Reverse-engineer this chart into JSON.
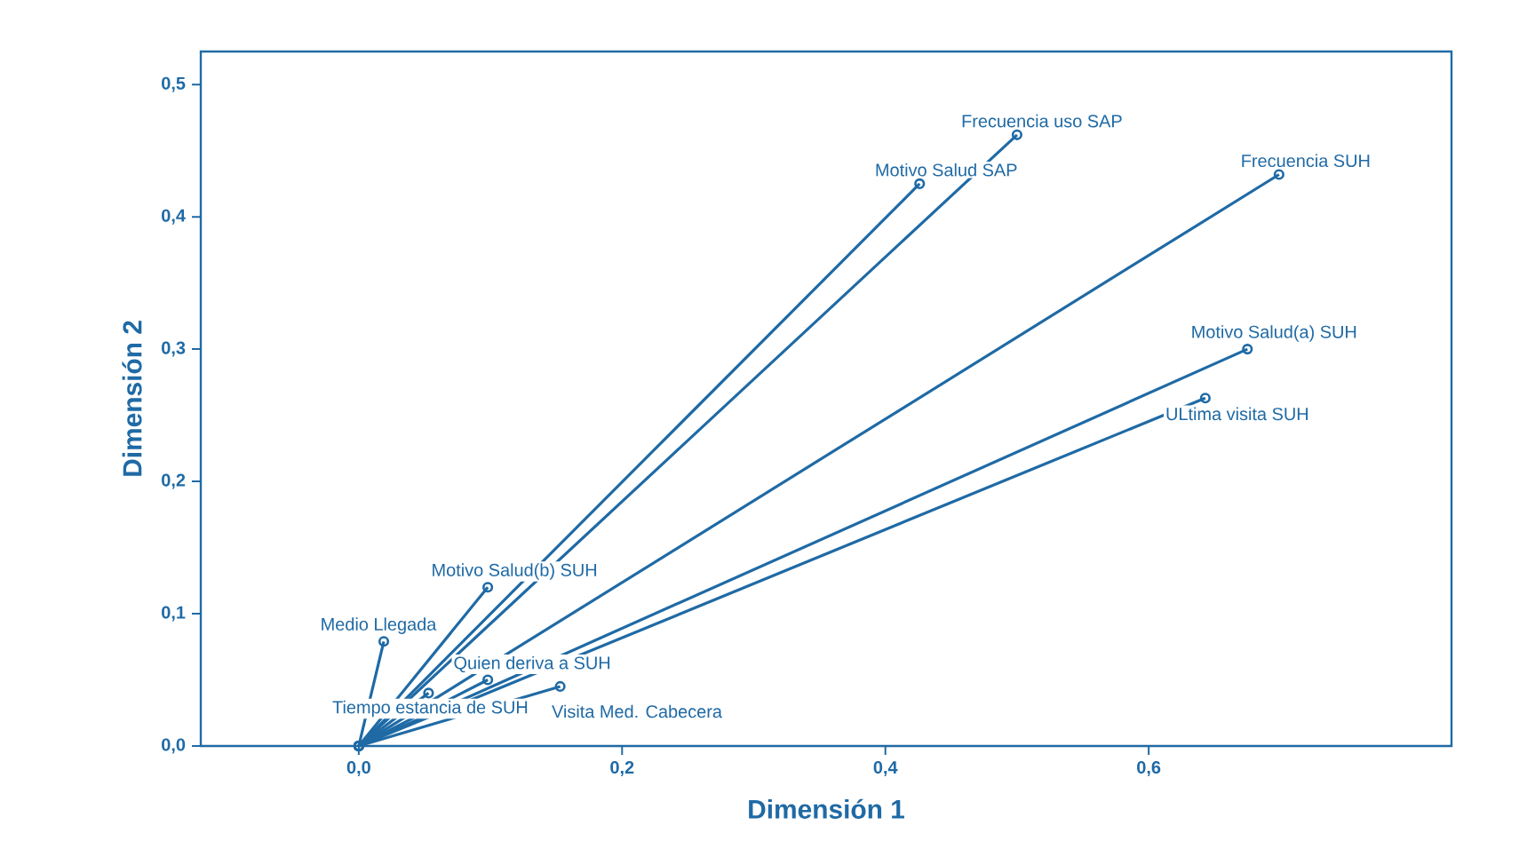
{
  "chart_data": {
    "type": "line",
    "xlabel": "Dimensión 1",
    "ylabel": "Dimensión 2",
    "marker": "circle",
    "line_style": "solid",
    "xlim": [
      -0.12,
      0.83
    ],
    "ylim": [
      0,
      0.525
    ],
    "xticks": [
      {
        "value": 0,
        "label": "0,0"
      },
      {
        "value": 0.2,
        "label": "0,2"
      },
      {
        "value": 0.4,
        "label": "0,4"
      },
      {
        "value": 0.6,
        "label": "0,6"
      }
    ],
    "yticks": [
      {
        "value": 0,
        "label": "0,0"
      },
      {
        "value": 0.1,
        "label": "0,1"
      },
      {
        "value": 0.2,
        "label": "0,2"
      },
      {
        "value": 0.3,
        "label": "0,3"
      },
      {
        "value": 0.4,
        "label": "0,4"
      },
      {
        "value": 0.5,
        "label": "0,5"
      }
    ],
    "series": [
      {
        "name": "Frecuencia uso SAP",
        "color": "#1f6aa5",
        "x": [
          0,
          0.5
        ],
        "values": [
          0,
          0.462
        ]
      },
      {
        "name": "Motivo Salud SAP",
        "color": "#1f6aa5",
        "x": [
          0,
          0.426
        ],
        "values": [
          0,
          0.425
        ]
      },
      {
        "name": "Frecuencia SUH",
        "color": "#1f6aa5",
        "x": [
          0,
          0.699
        ],
        "values": [
          0,
          0.432
        ]
      },
      {
        "name": "Motivo Salud(a) SUH",
        "color": "#1f6aa5",
        "x": [
          0,
          0.675
        ],
        "values": [
          0,
          0.3
        ]
      },
      {
        "name": "ULtima visita SUH",
        "color": "#1f6aa5",
        "x": [
          0,
          0.643
        ],
        "values": [
          0,
          0.263
        ]
      },
      {
        "name": "Motivo Salud(b) SUH",
        "color": "#1f6aa5",
        "x": [
          0,
          0.098
        ],
        "values": [
          0,
          0.12
        ]
      },
      {
        "name": "Medio Llegada",
        "color": "#1f6aa5",
        "x": [
          0,
          0.019
        ],
        "values": [
          0,
          0.079
        ]
      },
      {
        "name": "Quien deriva a SUH",
        "color": "#1f6aa5",
        "x": [
          0,
          0.098
        ],
        "values": [
          0,
          0.05
        ]
      },
      {
        "name": "Visita Med. Cabecera",
        "color": "#1f6aa5",
        "x": [
          0,
          0.153
        ],
        "values": [
          0,
          0.045
        ]
      },
      {
        "name": "Tiempo estancia de SUH",
        "color": "#1f6aa5",
        "x": [
          0,
          0.053
        ],
        "values": [
          0,
          0.04
        ]
      }
    ]
  }
}
